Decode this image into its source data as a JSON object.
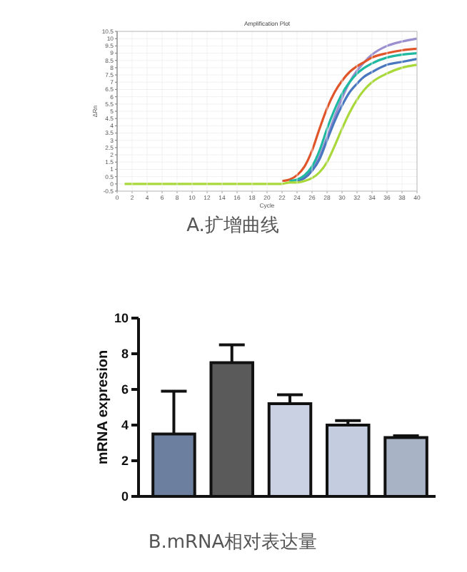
{
  "chart_data": [
    {
      "type": "line",
      "title": "Amplification Plot",
      "xlabel": "Cycle",
      "ylabel": "ΔRn",
      "annotations": [
        "A.扩增曲线"
      ],
      "grid": true,
      "marker": "none",
      "line_style": "solid",
      "xlim": [
        0,
        40
      ],
      "xticks": [
        0,
        2,
        4,
        6,
        8,
        10,
        12,
        14,
        16,
        18,
        20,
        22,
        24,
        26,
        28,
        30,
        32,
        34,
        36,
        38,
        40
      ],
      "ylim": [
        -0.5,
        10.5
      ],
      "yticks": [
        -0.5,
        0,
        0.5,
        1,
        1.5,
        2,
        2.5,
        3,
        3.5,
        4,
        4.5,
        5,
        5.5,
        6,
        6.5,
        7,
        7.5,
        8,
        8.5,
        9,
        9.5,
        10,
        10.5
      ],
      "x": [
        1,
        10,
        20,
        22,
        23,
        24,
        25,
        26,
        27,
        28,
        29,
        30,
        31,
        32,
        33,
        34,
        36,
        38,
        40
      ],
      "series": [
        {
          "color": "#9b8fd0",
          "x": [
            24,
            25,
            26,
            27,
            28,
            29,
            30,
            31,
            32,
            33,
            34,
            36,
            38,
            40
          ],
          "values": [
            0.3,
            0.5,
            1.0,
            1.9,
            3.2,
            4.6,
            5.9,
            7.0,
            7.8,
            8.4,
            8.9,
            9.5,
            9.8,
            10.0
          ]
        },
        {
          "color": "#e0562a",
          "x": [
            22,
            23,
            24,
            25,
            26,
            27,
            28,
            29,
            30,
            31,
            32,
            33,
            34,
            36,
            38,
            40
          ],
          "values": [
            0.2,
            0.3,
            0.6,
            1.2,
            2.3,
            3.8,
            5.2,
            6.3,
            7.1,
            7.7,
            8.1,
            8.4,
            8.7,
            9.0,
            9.2,
            9.3
          ]
        },
        {
          "color": "#4a78c0",
          "x": [
            24,
            25,
            26,
            27,
            28,
            29,
            30,
            31,
            32,
            33,
            34,
            36,
            38,
            40
          ],
          "values": [
            0.2,
            0.4,
            0.9,
            1.7,
            3.0,
            4.3,
            5.4,
            6.3,
            6.9,
            7.4,
            7.7,
            8.2,
            8.4,
            8.6
          ]
        },
        {
          "color": "#1fb8a0",
          "x": [
            23,
            24,
            25,
            26,
            27,
            28,
            29,
            30,
            31,
            32,
            33,
            34,
            36,
            38,
            40
          ],
          "values": [
            0.2,
            0.3,
            0.6,
            1.2,
            2.3,
            3.8,
            5.1,
            6.2,
            7.0,
            7.6,
            8.0,
            8.3,
            8.7,
            8.9,
            9.0
          ]
        },
        {
          "color": "#a8d83a",
          "values": [
            0,
            0,
            0,
            0,
            0.1,
            0.1,
            0.2,
            0.4,
            0.8,
            1.5,
            2.6,
            3.8,
            4.9,
            5.8,
            6.5,
            7.0,
            7.6,
            8.0,
            8.2
          ]
        }
      ]
    },
    {
      "type": "bar",
      "ylabel": "mRNA expresion",
      "annotations": [
        "B.mRNA相对表达量"
      ],
      "categories": [
        null,
        null,
        null,
        null,
        null
      ],
      "values": [
        3.5,
        7.5,
        5.2,
        4.0,
        3.3
      ],
      "errors": [
        2.4,
        1.0,
        0.5,
        0.25,
        0.1
      ],
      "colors": [
        "#6d7f9e",
        "#5a5a5a",
        "#c9d1e2",
        "#c4cde0",
        "#a9b3c6"
      ],
      "ylim": [
        0,
        10
      ],
      "yticks": [
        0,
        2,
        4,
        6,
        8,
        10
      ]
    }
  ]
}
